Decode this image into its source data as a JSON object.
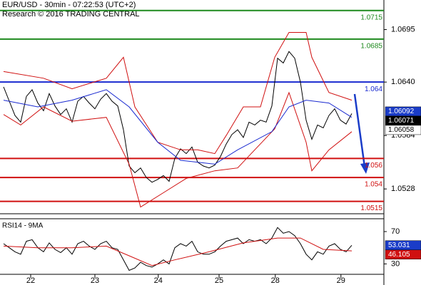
{
  "chart_data": [
    {
      "type": "price",
      "title": "EUR/USD - 30min - 07:22:53 (UTC+2)",
      "subtitle": "Research © 2016 TRADING CENTRAL",
      "xlim": [
        -0.625,
        66.625
      ],
      "xticks": [
        {
          "value": 4.75,
          "label": "22"
        },
        {
          "value": 16,
          "label": "23"
        },
        {
          "value": 27.1,
          "label": "24"
        },
        {
          "value": 37.75,
          "label": "25"
        },
        {
          "value": 47.6,
          "label": "28"
        },
        {
          "value": 59.1,
          "label": "29"
        }
      ],
      "ylim": [
        1.0502,
        1.0726
      ],
      "yticks": [
        1.0695,
        {
          "value": 1.064,
          "label": "1.0640"
        },
        1.0584,
        1.0528
      ],
      "series": [
        {
          "color": "#000000",
          "x": [
            0,
            1,
            2,
            3,
            4,
            5,
            6,
            7,
            8,
            9,
            10,
            11,
            12,
            13,
            14,
            15,
            16,
            17,
            18,
            19,
            20,
            21,
            22,
            23,
            24,
            25,
            26,
            27,
            28,
            29,
            30,
            31,
            32,
            33,
            34,
            35,
            36,
            37,
            38,
            39,
            40,
            41,
            42,
            43,
            44,
            45,
            46,
            47,
            48,
            49,
            50,
            51,
            52,
            53,
            54,
            55,
            56,
            57,
            58,
            59,
            60,
            61
          ],
          "values": [
            1.0635,
            1.062,
            1.0605,
            1.0598,
            1.0625,
            1.0632,
            1.0618,
            1.061,
            1.0628,
            1.0615,
            1.0606,
            1.0612,
            1.0598,
            1.062,
            1.0625,
            1.0618,
            1.0612,
            1.0622,
            1.0628,
            1.062,
            1.0615,
            1.059,
            1.0552,
            1.0545,
            1.055,
            1.054,
            1.0535,
            1.0538,
            1.0542,
            1.0536,
            1.056,
            1.057,
            1.0565,
            1.0572,
            1.0556,
            1.0552,
            1.055,
            1.0553,
            1.0562,
            1.0575,
            1.0585,
            1.059,
            1.0582,
            1.0598,
            1.0595,
            1.06,
            1.0598,
            1.0615,
            1.0665,
            1.066,
            1.0672,
            1.0665,
            1.064,
            1.06,
            1.058,
            1.0595,
            1.0592,
            1.0605,
            1.0612,
            1.06,
            1.0596,
            1.0607
          ]
        },
        {
          "color": "#d01010",
          "x": [
            0,
            7,
            12,
            18,
            21,
            23,
            27,
            31,
            34,
            37,
            39,
            42,
            45,
            47.5,
            50,
            53,
            54,
            57,
            61
          ],
          "values": [
            1.0651,
            1.0644,
            1.0633,
            1.0644,
            1.0666,
            1.0614,
            1.0577,
            1.0569,
            1.0569,
            1.0565,
            1.0584,
            1.0614,
            1.0614,
            1.0666,
            1.0692,
            1.0692,
            1.0666,
            1.0629,
            1.0621
          ]
        },
        {
          "color": "#d01010",
          "x": [
            0,
            3,
            7,
            12,
            18,
            22,
            24,
            28,
            32,
            37,
            41,
            44,
            47.5,
            50,
            53,
            54,
            57,
            61
          ],
          "values": [
            1.0606,
            1.0595,
            1.0614,
            1.0599,
            1.0603,
            1.0554,
            1.0509,
            1.0524,
            1.0539,
            1.0547,
            1.055,
            1.0569,
            1.0591,
            1.0629,
            1.0577,
            1.0547,
            1.0569,
            1.0588
          ]
        },
        {
          "color": "#1a2ad0",
          "x": [
            0,
            6,
            12,
            18,
            22,
            27,
            31,
            37,
            41,
            47,
            50,
            53,
            57,
            61
          ],
          "values": [
            1.0621,
            1.0614,
            1.0621,
            1.0632,
            1.0614,
            1.0577,
            1.0558,
            1.0554,
            1.0569,
            1.0588,
            1.0614,
            1.0621,
            1.0618,
            1.0603
          ]
        }
      ],
      "levels": [
        {
          "value": 1.0715,
          "color": "#1e8a1e"
        },
        {
          "value": 1.0685,
          "color": "#1e8a1e"
        },
        {
          "value": 1.064,
          "color": "#1a2ad0"
        },
        {
          "value": 1.056,
          "color": "#d01010"
        },
        {
          "value": 1.054,
          "color": "#d01010"
        },
        {
          "value": 1.0515,
          "color": "#d01010"
        }
      ],
      "price_labels": [
        {
          "value": 1.06092,
          "bg": "#1a3cc8",
          "fg": "#ffffff"
        },
        {
          "value": 1.06071,
          "bg": "#000000",
          "fg": "#ffffff"
        },
        {
          "value": 1.06058,
          "bg": "#ffffff",
          "fg": "#000000"
        }
      ]
    },
    {
      "type": "rsi",
      "title": "RSI14 - 9MA",
      "xlim": [
        -0.625,
        66.625
      ],
      "ylim": [
        18,
        85
      ],
      "yticks": [
        30,
        70
      ],
      "series": [
        {
          "color": "#000000",
          "x": [
            0,
            1,
            2,
            3,
            4,
            5,
            6,
            7,
            8,
            9,
            10,
            11,
            12,
            13,
            14,
            15,
            16,
            17,
            18,
            19,
            20,
            21,
            22,
            23,
            24,
            25,
            26,
            27,
            28,
            29,
            30,
            31,
            32,
            33,
            34,
            35,
            36,
            37,
            38,
            39,
            40,
            41,
            42,
            43,
            44,
            45,
            46,
            47,
            48,
            49,
            50,
            51,
            52,
            53,
            54,
            55,
            56,
            57,
            58,
            59,
            60,
            61
          ],
          "values": [
            55,
            50,
            45,
            42,
            58,
            60,
            50,
            45,
            56,
            48,
            44,
            50,
            42,
            55,
            58,
            52,
            48,
            55,
            58,
            50,
            48,
            35,
            22,
            25,
            32,
            28,
            26,
            30,
            35,
            30,
            50,
            55,
            52,
            58,
            45,
            42,
            42,
            45,
            52,
            58,
            60,
            62,
            55,
            60,
            58,
            60,
            55,
            62,
            75,
            68,
            70,
            65,
            55,
            42,
            35,
            45,
            42,
            52,
            55,
            48,
            45,
            53.031
          ]
        },
        {
          "color": "#d01010",
          "x": [
            0,
            6,
            12,
            18,
            22,
            26,
            30,
            36,
            42,
            48,
            52,
            56,
            61
          ],
          "values": [
            52,
            50,
            50,
            52,
            40,
            28,
            35,
            45,
            56,
            62,
            62,
            48,
            46.105
          ]
        }
      ],
      "price_labels": [
        {
          "value": 53.031,
          "bg": "#1a3cc8",
          "fg": "#ffffff"
        },
        {
          "value": 46.105,
          "bg": "#d01010",
          "fg": "#ffffff"
        }
      ]
    }
  ]
}
